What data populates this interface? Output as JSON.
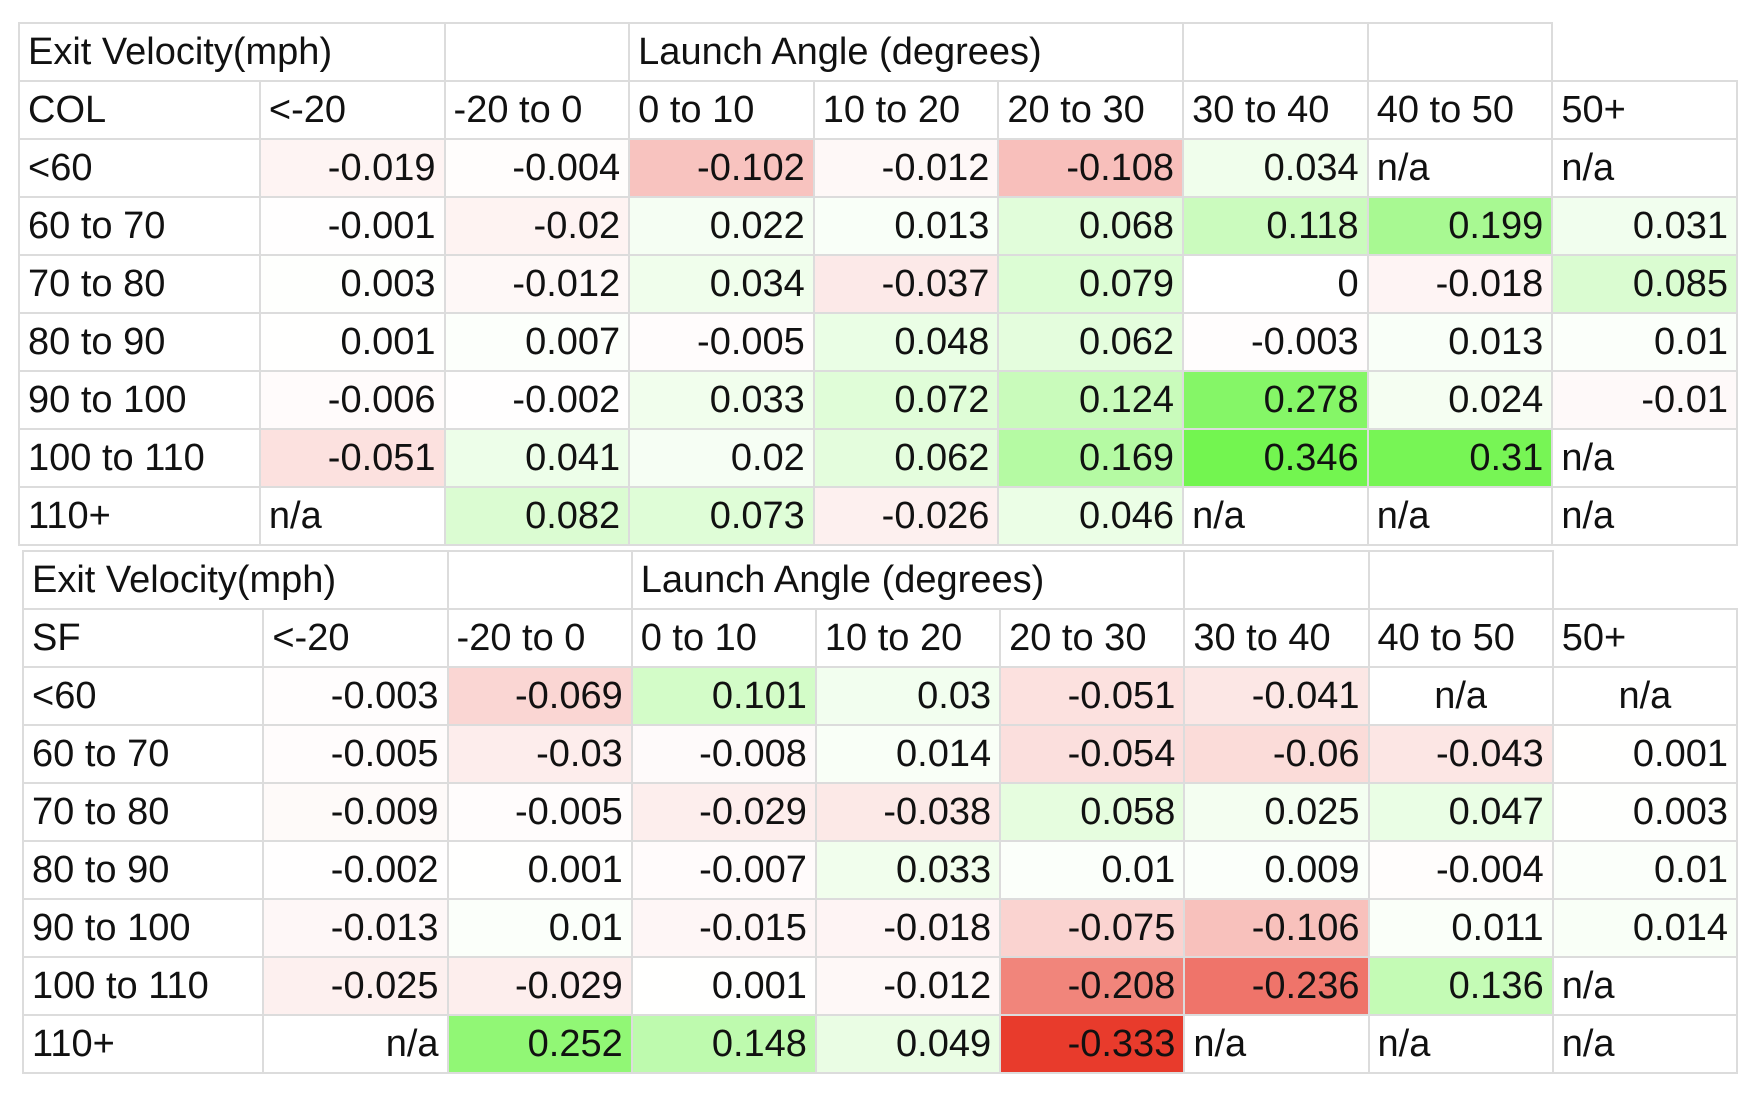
{
  "chart_data": [
    {
      "type": "heatmap",
      "team": "COL",
      "row_axis_label": "Exit Velocity(mph)",
      "col_axis_label": "Launch Angle (degrees)",
      "columns": [
        "<-20",
        "-20 to 0",
        "0 to 10",
        "10 to 20",
        "20 to 30",
        "30 to 40",
        "40 to 50",
        "50+"
      ],
      "rows": [
        {
          "label": "<60",
          "values": [
            "-0.019",
            "-0.004",
            "-0.102",
            "-0.012",
            "-0.108",
            "0.034",
            "n/a",
            "n/a"
          ]
        },
        {
          "label": "60 to 70",
          "values": [
            "-0.001",
            "-0.02",
            "0.022",
            "0.013",
            "0.068",
            "0.118",
            "0.199",
            "0.031"
          ]
        },
        {
          "label": "70 to 80",
          "values": [
            "0.003",
            "-0.012",
            "0.034",
            "-0.037",
            "0.079",
            "0",
            "-0.018",
            "0.085"
          ]
        },
        {
          "label": "80 to 90",
          "values": [
            "0.001",
            "0.007",
            "-0.005",
            "0.048",
            "0.062",
            "-0.003",
            "0.013",
            "0.01"
          ]
        },
        {
          "label": "90 to 100",
          "values": [
            "-0.006",
            "-0.002",
            "0.033",
            "0.072",
            "0.124",
            "0.278",
            "0.024",
            "-0.01"
          ]
        },
        {
          "label": "100 to 110",
          "values": [
            "-0.051",
            "0.041",
            "0.02",
            "0.062",
            "0.169",
            "0.346",
            "0.31",
            "n/a"
          ]
        },
        {
          "label": "110+",
          "values": [
            "n/a",
            "0.082",
            "0.073",
            "-0.026",
            "0.046",
            "n/a",
            "n/a",
            "n/a"
          ]
        }
      ]
    },
    {
      "type": "heatmap",
      "team": "SF",
      "row_axis_label": "Exit Velocity(mph)",
      "col_axis_label": "Launch Angle (degrees)",
      "columns": [
        "<-20",
        "-20 to 0",
        "0 to 10",
        "10 to 20",
        "20 to 30",
        "30 to 40",
        "40 to 50",
        "50+"
      ],
      "rows": [
        {
          "label": "<60",
          "values": [
            "-0.003",
            "-0.069",
            "0.101",
            "0.03",
            "-0.051",
            "-0.041",
            "n/a",
            "n/a"
          ]
        },
        {
          "label": "60 to 70",
          "values": [
            "-0.005",
            "-0.03",
            "-0.008",
            "0.014",
            "-0.054",
            "-0.06",
            "-0.043",
            "0.001"
          ]
        },
        {
          "label": "70 to 80",
          "values": [
            "-0.009",
            "-0.005",
            "-0.029",
            "-0.038",
            "0.058",
            "0.025",
            "0.047",
            "0.003"
          ]
        },
        {
          "label": "80 to 90",
          "values": [
            "-0.002",
            "0.001",
            "-0.007",
            "0.033",
            "0.01",
            "0.009",
            "-0.004",
            "0.01"
          ]
        },
        {
          "label": "90 to 100",
          "values": [
            "-0.013",
            "0.01",
            "-0.015",
            "-0.018",
            "-0.075",
            "-0.106",
            "0.011",
            "0.014"
          ]
        },
        {
          "label": "100 to 110",
          "values": [
            "-0.025",
            "-0.029",
            "0.001",
            "-0.012",
            "-0.208",
            "-0.236",
            "0.136",
            "n/a"
          ]
        },
        {
          "label": "110+",
          "values": [
            "n/a",
            "0.252",
            "0.148",
            "0.049",
            "-0.333",
            "n/a",
            "n/a",
            "n/a"
          ]
        }
      ]
    }
  ]
}
